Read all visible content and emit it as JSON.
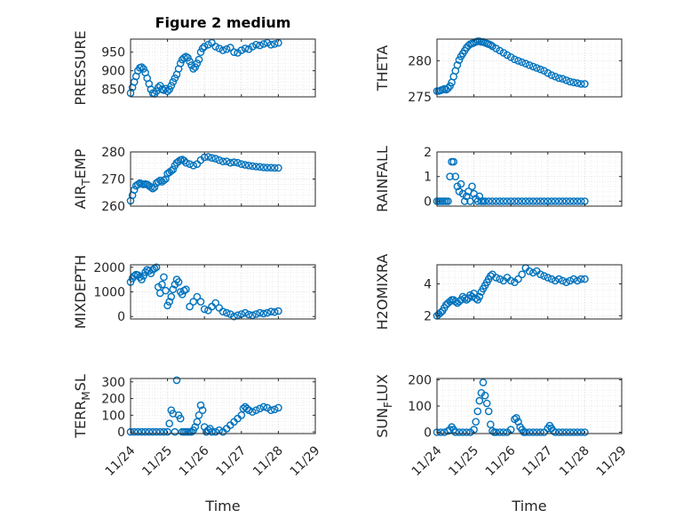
{
  "chart_data": [
    {
      "type": "scatter",
      "title": "Figure 2 medium",
      "ylabel": "PRESSURE",
      "ylabel_sub": "",
      "ylabel_tail": "",
      "xlabel": "",
      "ylim": [
        830,
        985
      ],
      "yticks": [
        850,
        900,
        950
      ],
      "xlim": [
        0,
        5
      ],
      "xticks": [],
      "x": [
        0.0,
        0.05,
        0.1,
        0.15,
        0.2,
        0.25,
        0.3,
        0.35,
        0.4,
        0.45,
        0.5,
        0.55,
        0.6,
        0.65,
        0.7,
        0.75,
        0.8,
        0.85,
        0.9,
        0.95,
        1.0,
        1.05,
        1.1,
        1.15,
        1.2,
        1.25,
        1.3,
        1.35,
        1.4,
        1.45,
        1.5,
        1.55,
        1.6,
        1.65,
        1.7,
        1.75,
        1.8,
        1.85,
        1.9,
        1.95,
        2.0,
        2.1,
        2.2,
        2.3,
        2.4,
        2.5,
        2.6,
        2.7,
        2.8,
        2.9,
        3.0,
        3.1,
        3.2,
        3.3,
        3.4,
        3.5,
        3.6,
        3.7,
        3.8,
        3.9,
        4.0
      ],
      "y": [
        840,
        855,
        870,
        885,
        900,
        908,
        910,
        905,
        895,
        880,
        865,
        850,
        840,
        838,
        845,
        855,
        860,
        850,
        848,
        852,
        845,
        850,
        860,
        870,
        880,
        890,
        905,
        920,
        930,
        935,
        938,
        935,
        925,
        915,
        905,
        910,
        920,
        930,
        950,
        960,
        965,
        970,
        975,
        965,
        960,
        955,
        958,
        962,
        950,
        948,
        955,
        960,
        958,
        965,
        970,
        968,
        972,
        975,
        970,
        972,
        975
      ]
    },
    {
      "type": "scatter",
      "title": "",
      "ylabel": "THETA",
      "ylabel_sub": "",
      "ylabel_tail": "",
      "xlabel": "",
      "ylim": [
        275,
        283
      ],
      "yticks": [
        275,
        280
      ],
      "xlim": [
        0,
        5
      ],
      "xticks": [],
      "x": [
        0.0,
        0.05,
        0.1,
        0.15,
        0.2,
        0.25,
        0.3,
        0.35,
        0.4,
        0.45,
        0.5,
        0.55,
        0.6,
        0.65,
        0.7,
        0.75,
        0.8,
        0.85,
        0.9,
        0.95,
        1.0,
        1.05,
        1.1,
        1.15,
        1.2,
        1.25,
        1.3,
        1.35,
        1.4,
        1.45,
        1.5,
        1.6,
        1.7,
        1.8,
        1.9,
        2.0,
        2.1,
        2.2,
        2.3,
        2.4,
        2.5,
        2.6,
        2.7,
        2.8,
        2.9,
        3.0,
        3.1,
        3.2,
        3.3,
        3.4,
        3.5,
        3.6,
        3.7,
        3.8,
        3.9,
        4.0
      ],
      "y": [
        275.8,
        275.8,
        275.9,
        276.0,
        276.1,
        276.0,
        276.2,
        276.5,
        277.0,
        277.8,
        278.6,
        279.4,
        280.1,
        280.6,
        281.0,
        281.4,
        281.8,
        282.1,
        282.3,
        282.4,
        282.5,
        282.6,
        282.7,
        282.7,
        282.6,
        282.6,
        282.5,
        282.4,
        282.3,
        282.2,
        282.0,
        281.7,
        281.4,
        281.1,
        280.8,
        280.5,
        280.2,
        280.0,
        279.8,
        279.6,
        279.4,
        279.2,
        279.0,
        278.8,
        278.6,
        278.3,
        278.0,
        277.8,
        277.6,
        277.5,
        277.3,
        277.1,
        277.0,
        276.9,
        276.8,
        276.8
      ]
    },
    {
      "type": "scatter",
      "title": "",
      "ylabel": "AIR",
      "ylabel_sub": "T",
      "ylabel_tail": "EMP",
      "xlabel": "",
      "ylim": [
        260,
        280
      ],
      "yticks": [
        260,
        270,
        280
      ],
      "xlim": [
        0,
        5
      ],
      "xticks": [],
      "x": [
        0.0,
        0.05,
        0.1,
        0.15,
        0.2,
        0.25,
        0.3,
        0.35,
        0.4,
        0.45,
        0.5,
        0.55,
        0.6,
        0.65,
        0.7,
        0.75,
        0.8,
        0.85,
        0.9,
        0.95,
        1.0,
        1.05,
        1.1,
        1.15,
        1.2,
        1.25,
        1.3,
        1.35,
        1.4,
        1.45,
        1.5,
        1.6,
        1.7,
        1.8,
        1.9,
        2.0,
        2.1,
        2.2,
        2.3,
        2.4,
        2.5,
        2.6,
        2.7,
        2.8,
        2.9,
        3.0,
        3.1,
        3.2,
        3.3,
        3.4,
        3.5,
        3.6,
        3.7,
        3.8,
        3.9,
        4.0
      ],
      "y": [
        262,
        264,
        266,
        267.5,
        268,
        268.5,
        268.2,
        268,
        268.2,
        268,
        267.5,
        267,
        266.5,
        267,
        268.5,
        269,
        269.5,
        269,
        269.5,
        270,
        272,
        272.5,
        273,
        273.5,
        275,
        276,
        276.5,
        277,
        277.2,
        276.8,
        276,
        275.5,
        275,
        275.5,
        277,
        278,
        278.2,
        277.8,
        277.5,
        277,
        276.5,
        276.5,
        276,
        276.2,
        276,
        275.5,
        275.2,
        275,
        274.8,
        274.6,
        274.5,
        274.3,
        274.2,
        274.2,
        274.1,
        274.1
      ]
    },
    {
      "type": "scatter",
      "title": "",
      "ylabel": "RAINFALL",
      "ylabel_sub": "",
      "ylabel_tail": "",
      "xlabel": "",
      "ylim": [
        -0.2,
        2
      ],
      "yticks": [
        0,
        1,
        2
      ],
      "xlim": [
        0,
        5
      ],
      "xticks": [],
      "x": [
        0.0,
        0.05,
        0.1,
        0.15,
        0.2,
        0.25,
        0.3,
        0.35,
        0.4,
        0.45,
        0.5,
        0.55,
        0.6,
        0.65,
        0.7,
        0.75,
        0.8,
        0.85,
        0.9,
        0.95,
        1.0,
        1.05,
        1.1,
        1.15,
        1.2,
        1.25,
        1.3,
        1.4,
        1.5,
        1.6,
        1.7,
        1.8,
        1.9,
        2.0,
        2.1,
        2.2,
        2.3,
        2.4,
        2.5,
        2.6,
        2.7,
        2.8,
        2.9,
        3.0,
        3.1,
        3.2,
        3.3,
        3.4,
        3.5,
        3.6,
        3.7,
        3.8,
        3.9,
        4.0
      ],
      "y": [
        0,
        0,
        0,
        0,
        0,
        0,
        0,
        1.0,
        1.6,
        1.6,
        1.0,
        0.6,
        0.4,
        0.7,
        0.3,
        0.0,
        0.2,
        0.4,
        0.0,
        0.6,
        0.3,
        0.1,
        0.0,
        0.2,
        0,
        0,
        0,
        0,
        0,
        0,
        0,
        0,
        0,
        0,
        0,
        0,
        0,
        0,
        0,
        0,
        0,
        0,
        0,
        0,
        0,
        0,
        0,
        0,
        0,
        0,
        0,
        0,
        0,
        0
      ]
    },
    {
      "type": "scatter",
      "title": "",
      "ylabel": "MIXDEPTH",
      "ylabel_sub": "",
      "ylabel_tail": "",
      "xlabel": "",
      "ylim": [
        -100,
        2100
      ],
      "yticks": [
        0,
        1000,
        2000
      ],
      "xlim": [
        0,
        5
      ],
      "xticks": [],
      "x": [
        0.0,
        0.05,
        0.1,
        0.15,
        0.2,
        0.25,
        0.3,
        0.35,
        0.4,
        0.45,
        0.5,
        0.55,
        0.6,
        0.65,
        0.7,
        0.75,
        0.8,
        0.85,
        0.9,
        0.95,
        1.0,
        1.05,
        1.1,
        1.15,
        1.2,
        1.25,
        1.3,
        1.35,
        1.4,
        1.45,
        1.5,
        1.6,
        1.7,
        1.8,
        1.9,
        2.0,
        2.1,
        2.2,
        2.3,
        2.4,
        2.5,
        2.6,
        2.7,
        2.8,
        2.9,
        3.0,
        3.1,
        3.2,
        3.3,
        3.4,
        3.5,
        3.6,
        3.7,
        3.8,
        3.9,
        4.0
      ],
      "y": [
        1400,
        1550,
        1650,
        1700,
        1680,
        1600,
        1500,
        1650,
        1800,
        1900,
        1850,
        1750,
        1900,
        1950,
        2000,
        1200,
        950,
        1300,
        1600,
        1050,
        450,
        600,
        800,
        1100,
        1300,
        1500,
        1400,
        1000,
        900,
        1050,
        1100,
        400,
        600,
        800,
        600,
        300,
        250,
        400,
        550,
        350,
        200,
        150,
        100,
        0,
        50,
        100,
        150,
        80,
        50,
        100,
        150,
        120,
        150,
        200,
        180,
        220
      ]
    },
    {
      "type": "scatter",
      "title": "",
      "ylabel": "H2OMIXRA",
      "ylabel_sub": "",
      "ylabel_tail": "",
      "xlabel": "",
      "ylim": [
        1.8,
        5.2
      ],
      "yticks": [
        2,
        4
      ],
      "xlim": [
        0,
        5
      ],
      "xticks": [],
      "x": [
        0.0,
        0.05,
        0.1,
        0.15,
        0.2,
        0.25,
        0.3,
        0.35,
        0.4,
        0.45,
        0.5,
        0.55,
        0.6,
        0.65,
        0.7,
        0.75,
        0.8,
        0.85,
        0.9,
        0.95,
        1.0,
        1.05,
        1.1,
        1.15,
        1.2,
        1.25,
        1.3,
        1.35,
        1.4,
        1.45,
        1.5,
        1.6,
        1.7,
        1.8,
        1.9,
        2.0,
        2.1,
        2.2,
        2.3,
        2.4,
        2.5,
        2.6,
        2.7,
        2.8,
        2.9,
        3.0,
        3.1,
        3.2,
        3.3,
        3.4,
        3.5,
        3.6,
        3.7,
        3.8,
        3.9,
        4.0
      ],
      "y": [
        2.0,
        2.1,
        2.2,
        2.3,
        2.5,
        2.7,
        2.8,
        2.9,
        3.0,
        3.0,
        2.9,
        2.8,
        2.9,
        3.0,
        3.2,
        3.1,
        3.0,
        3.1,
        3.3,
        3.2,
        3.4,
        3.1,
        3.0,
        3.2,
        3.5,
        3.7,
        3.9,
        4.1,
        4.3,
        4.5,
        4.6,
        4.4,
        4.3,
        4.2,
        4.4,
        4.2,
        4.1,
        4.3,
        4.6,
        5.0,
        4.8,
        4.7,
        4.8,
        4.6,
        4.5,
        4.4,
        4.3,
        4.2,
        4.3,
        4.2,
        4.1,
        4.2,
        4.3,
        4.2,
        4.3,
        4.3
      ]
    },
    {
      "type": "scatter",
      "title": "",
      "ylabel": "TERR",
      "ylabel_sub": "M",
      "ylabel_tail": "SL",
      "xlabel": "Time",
      "ylim": [
        -10,
        320
      ],
      "yticks": [
        0,
        100,
        200,
        300
      ],
      "xlim": [
        0,
        5
      ],
      "xticks": [
        "11/24",
        "11/25",
        "11/26",
        "11/27",
        "11/28",
        "11/29"
      ],
      "x": [
        0.0,
        0.1,
        0.2,
        0.3,
        0.4,
        0.5,
        0.6,
        0.7,
        0.8,
        0.9,
        1.0,
        1.05,
        1.1,
        1.15,
        1.2,
        1.25,
        1.3,
        1.35,
        1.4,
        1.45,
        1.5,
        1.55,
        1.6,
        1.65,
        1.7,
        1.75,
        1.8,
        1.85,
        1.9,
        1.95,
        2.0,
        2.05,
        2.1,
        2.15,
        2.2,
        2.3,
        2.4,
        2.5,
        2.6,
        2.7,
        2.8,
        2.9,
        3.0,
        3.05,
        3.1,
        3.15,
        3.2,
        3.3,
        3.4,
        3.5,
        3.6,
        3.7,
        3.8,
        3.9,
        4.0
      ],
      "y": [
        0,
        0,
        0,
        0,
        0,
        0,
        0,
        0,
        0,
        0,
        0,
        50,
        130,
        110,
        0,
        310,
        100,
        80,
        0,
        0,
        0,
        0,
        0,
        0,
        10,
        30,
        60,
        100,
        160,
        130,
        30,
        0,
        10,
        20,
        0,
        0,
        10,
        0,
        20,
        40,
        60,
        80,
        100,
        140,
        150,
        140,
        130,
        120,
        130,
        140,
        150,
        145,
        130,
        135,
        145
      ]
    },
    {
      "type": "scatter",
      "title": "",
      "ylabel": "SUN",
      "ylabel_sub": "F",
      "ylabel_tail": "LUX",
      "xlabel": "Time",
      "ylim": [
        -5,
        205
      ],
      "yticks": [
        0,
        100,
        200
      ],
      "xlim": [
        0,
        5
      ],
      "xticks": [
        "11/24",
        "11/25",
        "11/26",
        "11/27",
        "11/28",
        "11/29"
      ],
      "x": [
        0.0,
        0.1,
        0.2,
        0.3,
        0.35,
        0.4,
        0.45,
        0.5,
        0.6,
        0.7,
        0.8,
        0.9,
        1.0,
        1.05,
        1.1,
        1.15,
        1.2,
        1.25,
        1.3,
        1.35,
        1.4,
        1.45,
        1.5,
        1.55,
        1.6,
        1.7,
        1.8,
        1.9,
        2.0,
        2.1,
        2.15,
        2.2,
        2.25,
        2.3,
        2.35,
        2.4,
        2.5,
        2.6,
        2.7,
        2.8,
        2.9,
        3.0,
        3.05,
        3.1,
        3.15,
        3.2,
        3.3,
        3.4,
        3.5,
        3.6,
        3.7,
        3.8,
        3.9,
        4.0
      ],
      "y": [
        0,
        0,
        0,
        5,
        10,
        20,
        10,
        0,
        0,
        0,
        0,
        0,
        10,
        40,
        80,
        120,
        150,
        190,
        140,
        110,
        80,
        30,
        5,
        0,
        0,
        0,
        0,
        0,
        10,
        50,
        55,
        40,
        20,
        10,
        0,
        0,
        0,
        0,
        0,
        0,
        0,
        15,
        25,
        15,
        5,
        0,
        0,
        0,
        0,
        0,
        0,
        0,
        0,
        0
      ]
    }
  ],
  "colors": {
    "marker": "#0072BD",
    "axis": "#262626",
    "grid": "#d0d0d0"
  }
}
